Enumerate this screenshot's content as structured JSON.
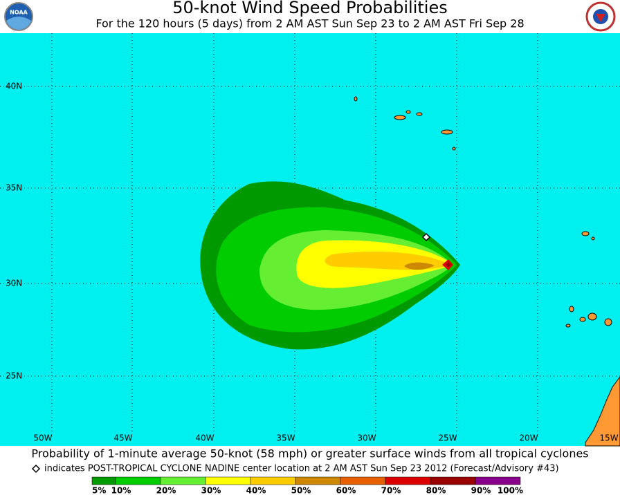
{
  "header": {
    "title": "50-knot Wind Speed Probabilities",
    "subtitle": "For the 120 hours (5 days) from 2 AM AST Sun Sep 23 to 2 AM AST Fri Sep 28",
    "logo_left": "NOAA"
  },
  "map": {
    "lat_labels": [
      "40N",
      "35N",
      "30N",
      "25N"
    ],
    "lon_labels": [
      "50W",
      "45W",
      "40W",
      "35W",
      "30W",
      "25W",
      "20W",
      "15W"
    ]
  },
  "footer": {
    "caption": "Probability of 1-minute average 50-knot (58 mph) or greater surface winds from all tropical cyclones",
    "note": "indicates POST-TROPICAL CYCLONE NADINE center location at 2 AM AST Sun Sep 23 2012 (Forecast/Advisory #43)"
  },
  "legend": {
    "labels": [
      "5%",
      "10%",
      "20%",
      "30%",
      "40%",
      "50%",
      "60%",
      "70%",
      "80%",
      "90%",
      "100%"
    ],
    "colors": [
      "#009900",
      "#00cc00",
      "#66ee33",
      "#ffff00",
      "#ffcc00",
      "#cc8800",
      "#e66000",
      "#dd0000",
      "#990000",
      "#880088"
    ]
  }
}
